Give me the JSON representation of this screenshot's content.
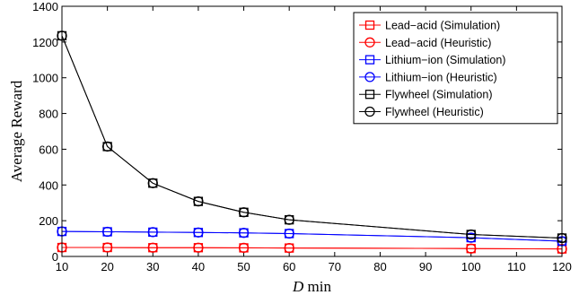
{
  "chart_data": {
    "type": "line",
    "xlabel": "D min",
    "xlabel_italic": "D",
    "xlabel_rest": " min",
    "ylabel": "Average Reward",
    "xlim": [
      10,
      120
    ],
    "ylim": [
      0,
      1400
    ],
    "xticks": [
      10,
      20,
      30,
      40,
      50,
      60,
      70,
      80,
      90,
      100,
      110,
      120
    ],
    "yticks": [
      0,
      200,
      400,
      600,
      800,
      1000,
      1200,
      1400
    ],
    "legend_position": "top-right",
    "x": [
      10,
      20,
      30,
      40,
      50,
      60,
      100,
      120
    ],
    "series": [
      {
        "name": "Lead−acid (Simulation)",
        "color": "#ff0000",
        "marker": "square",
        "values": [
          50,
          50,
          49,
          49,
          48,
          47,
          44,
          42
        ]
      },
      {
        "name": "Lead−acid (Heuristic)",
        "color": "#ff0000",
        "marker": "circle",
        "values": [
          50,
          50,
          49,
          49,
          48,
          47,
          44,
          42
        ]
      },
      {
        "name": "Lithium−ion (Simulation)",
        "color": "#0000ff",
        "marker": "square",
        "values": [
          140,
          138,
          136,
          134,
          132,
          128,
          105,
          85
        ]
      },
      {
        "name": "Lithium−ion (Heuristic)",
        "color": "#0000ff",
        "marker": "circle",
        "values": [
          140,
          138,
          136,
          134,
          132,
          128,
          105,
          85
        ]
      },
      {
        "name": "Flywheel (Simulation)",
        "color": "#000000",
        "marker": "square",
        "values": [
          1235,
          615,
          410,
          308,
          247,
          205,
          123,
          103
        ]
      },
      {
        "name": "Flywheel (Heuristic)",
        "color": "#000000",
        "marker": "circle",
        "values": [
          1235,
          615,
          410,
          308,
          247,
          205,
          123,
          103
        ]
      }
    ]
  }
}
